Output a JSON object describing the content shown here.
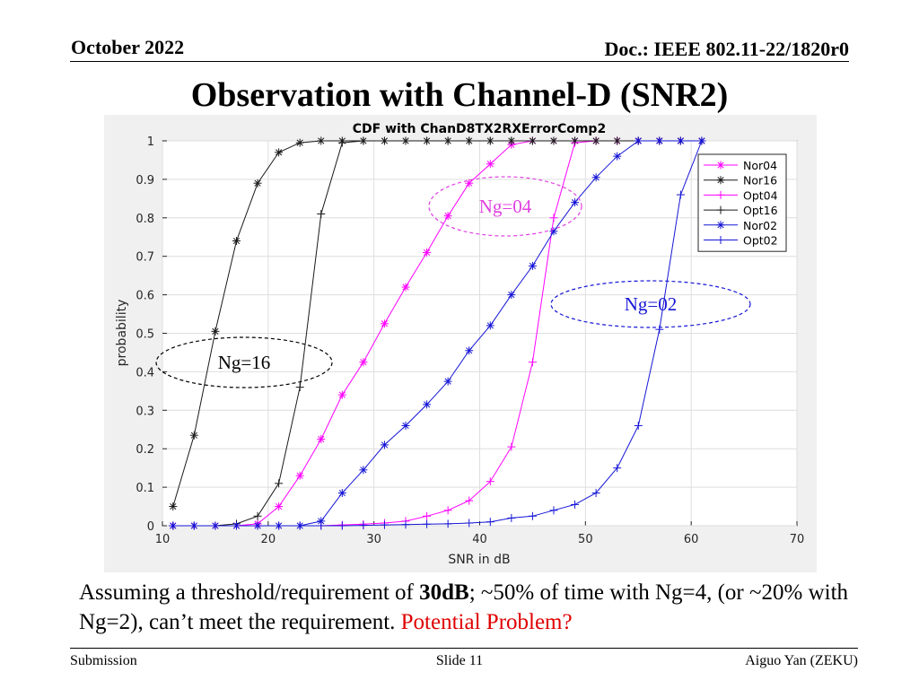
{
  "header": {
    "date": "October 2022",
    "doc": "Doc.: IEEE 802.11-22/1820r0"
  },
  "slide_title": "Observation with Channel-D (SNR2)",
  "body": {
    "part1": "Assuming a threshold/requirement of ",
    "bold": "30dB",
    "part2": "; ~50% of time with Ng=4, (or ~20% with Ng=2),  can’t meet  the requirement. ",
    "red": "Potential Problem?"
  },
  "footer": {
    "left": "Submission",
    "center": "Slide 11",
    "right": "Aiguo Yan (ZEKU)"
  },
  "colors": {
    "black_series": "#1a1a1a",
    "magenta_series": "#ff00ff",
    "blue_series": "#1515d6",
    "emphasis_red": "#e00000"
  },
  "chart_data": {
    "type": "line",
    "title": "CDF with ChanD8TX2RXErrorComp2",
    "xlabel": "SNR in dB",
    "ylabel": "probability",
    "xlim": [
      10,
      70
    ],
    "ylim": [
      0,
      1
    ],
    "xticks": [
      10,
      20,
      30,
      40,
      50,
      60,
      70
    ],
    "yticks": [
      0,
      0.1,
      0.2,
      0.3,
      0.4,
      0.5,
      0.6,
      0.7,
      0.8,
      0.9,
      1
    ],
    "grid": true,
    "legend_position": "top-right",
    "series": [
      {
        "name": "Nor04",
        "color": "#ff00ff",
        "marker": "asterisk",
        "x": [
          11,
          13,
          15,
          17,
          19,
          21,
          23,
          25,
          27,
          29,
          31,
          33,
          35,
          37,
          39,
          41,
          43,
          45,
          47,
          49,
          51,
          53,
          55,
          57,
          59,
          61
        ],
        "y": [
          0,
          0,
          0,
          0,
          0.005,
          0.05,
          0.13,
          0.225,
          0.34,
          0.425,
          0.525,
          0.62,
          0.71,
          0.805,
          0.89,
          0.94,
          0.99,
          1,
          1,
          1,
          1,
          1,
          1,
          1,
          1,
          1
        ]
      },
      {
        "name": "Nor16",
        "color": "#1a1a1a",
        "marker": "asterisk",
        "x": [
          11,
          13,
          15,
          17,
          19,
          21,
          23,
          25,
          27,
          29,
          31,
          33,
          35,
          37,
          39,
          41,
          43,
          45,
          47,
          49,
          51,
          53,
          55,
          57,
          59,
          61
        ],
        "y": [
          0.05,
          0.235,
          0.505,
          0.74,
          0.89,
          0.97,
          0.995,
          1,
          1,
          1,
          1,
          1,
          1,
          1,
          1,
          1,
          1,
          1,
          1,
          1,
          1,
          1,
          1,
          1,
          1,
          1
        ]
      },
      {
        "name": "Opt04",
        "color": "#ff00ff",
        "marker": "plus",
        "x": [
          11,
          13,
          15,
          17,
          19,
          21,
          23,
          25,
          27,
          29,
          31,
          33,
          35,
          37,
          39,
          41,
          43,
          45,
          47,
          49,
          51,
          53,
          55,
          57,
          59,
          61
        ],
        "y": [
          0,
          0,
          0,
          0,
          0,
          0,
          0,
          0,
          0.002,
          0.004,
          0.007,
          0.012,
          0.025,
          0.04,
          0.065,
          0.115,
          0.205,
          0.425,
          0.8,
          0.995,
          1,
          1,
          1,
          1,
          1,
          1
        ]
      },
      {
        "name": "Opt16",
        "color": "#1a1a1a",
        "marker": "plus",
        "x": [
          11,
          13,
          15,
          17,
          19,
          21,
          23,
          25,
          27,
          29,
          31,
          33,
          35,
          37,
          39,
          41,
          43,
          45,
          47,
          49,
          51,
          53,
          55,
          57,
          59,
          61
        ],
        "y": [
          0,
          0,
          0,
          0.005,
          0.025,
          0.11,
          0.36,
          0.81,
          0.995,
          1,
          1,
          1,
          1,
          1,
          1,
          1,
          1,
          1,
          1,
          1,
          1,
          1,
          1,
          1,
          1,
          1
        ]
      },
      {
        "name": "Nor02",
        "color": "#1515d6",
        "marker": "asterisk",
        "x": [
          11,
          13,
          15,
          17,
          19,
          21,
          23,
          25,
          27,
          29,
          31,
          33,
          35,
          37,
          39,
          41,
          43,
          45,
          47,
          49,
          51,
          53,
          55,
          57,
          59,
          61
        ],
        "y": [
          0,
          0,
          0,
          0,
          0,
          0,
          0,
          0.012,
          0.085,
          0.145,
          0.21,
          0.26,
          0.315,
          0.375,
          0.455,
          0.52,
          0.6,
          0.675,
          0.765,
          0.84,
          0.905,
          0.96,
          1,
          1,
          1,
          1
        ]
      },
      {
        "name": "Opt02",
        "color": "#1515d6",
        "marker": "plus",
        "x": [
          11,
          13,
          15,
          17,
          19,
          21,
          23,
          25,
          27,
          29,
          31,
          33,
          35,
          37,
          39,
          41,
          43,
          45,
          47,
          49,
          51,
          53,
          55,
          57,
          59,
          61
        ],
        "y": [
          0,
          0,
          0,
          0,
          0,
          0,
          0,
          0,
          0,
          0.001,
          0.002,
          0.003,
          0.004,
          0.005,
          0.007,
          0.01,
          0.02,
          0.025,
          0.04,
          0.055,
          0.085,
          0.15,
          0.26,
          0.51,
          0.86,
          1
        ]
      }
    ],
    "annotations": [
      {
        "text": "Ng=04",
        "color": "#e040e0"
      },
      {
        "text": "Ng=02",
        "color": "#1515d6"
      },
      {
        "text": "Ng=16",
        "color": "#000000"
      }
    ]
  }
}
